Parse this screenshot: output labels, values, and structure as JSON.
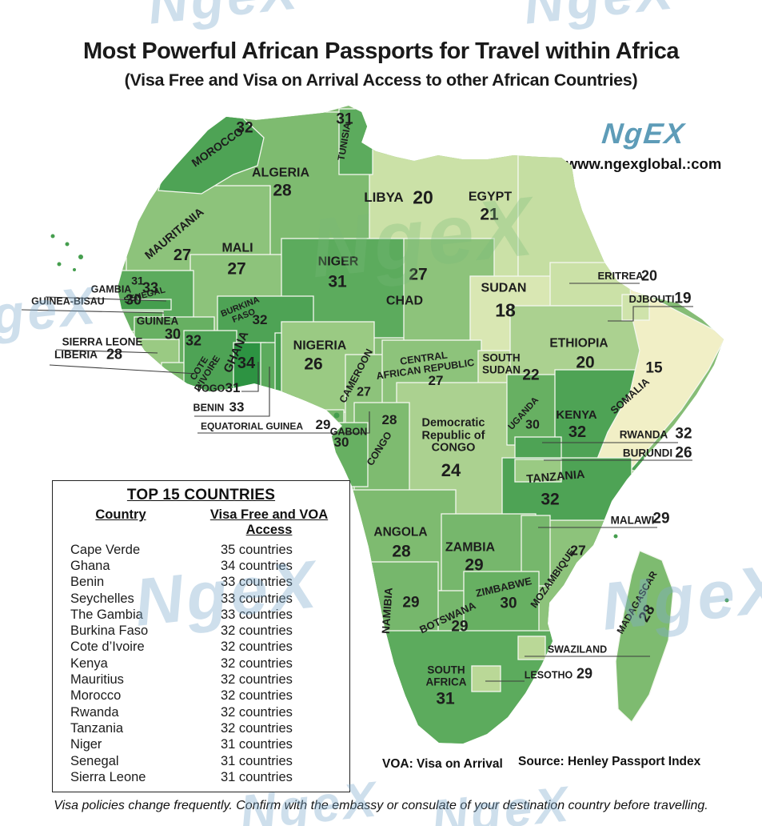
{
  "header": {
    "title": "Most Powerful African Passports for Travel within Africa",
    "subtitle": "(Visa Free and Visa on Arrival Access to other African Countries)"
  },
  "branding": {
    "logo_text": "NgEX",
    "website": "www.ngexglobal.:com",
    "logo_color": "#5e9cb8",
    "watermark_text": "NgeX"
  },
  "map": {
    "countries": [
      {
        "id": "morocco",
        "label": "MOROCCO",
        "value": 32
      },
      {
        "id": "tunisia",
        "label": "TUNISIA",
        "value": 31
      },
      {
        "id": "algeria",
        "label": "ALGERIA",
        "value": 28
      },
      {
        "id": "libya",
        "label": "LIBYA",
        "value": 20
      },
      {
        "id": "egypt",
        "label": "EGYPT",
        "value": 21
      },
      {
        "id": "mauritania",
        "label": "MAURITANIA",
        "value": 27
      },
      {
        "id": "mali",
        "label": "MALI",
        "value": 27
      },
      {
        "id": "senegal",
        "label": "SENEGAL",
        "value": 31
      },
      {
        "id": "gambia",
        "label": "GAMBIA",
        "value": 33
      },
      {
        "id": "guinea_bissau",
        "label": "GUINEA-BISAU",
        "value": 30
      },
      {
        "id": "guinea",
        "label": "GUINEA",
        "value": 30
      },
      {
        "id": "sierra_leone",
        "label": "SIERRA LEONE",
        "value": null
      },
      {
        "id": "liberia",
        "label": "LIBERIA",
        "value": 28
      },
      {
        "id": "cote_divoire",
        "label": "COTE\nD'IVOIRE",
        "value": 32
      },
      {
        "id": "ghana",
        "label": "GHANA",
        "value": 34
      },
      {
        "id": "togo",
        "label": "TOGO",
        "value": 31
      },
      {
        "id": "benin",
        "label": "BENIN",
        "value": 33
      },
      {
        "id": "burkina_faso",
        "label": "BURKINA\nFASO",
        "value": 32
      },
      {
        "id": "niger",
        "label": "NIGER",
        "value": 31
      },
      {
        "id": "nigeria",
        "label": "NIGERIA",
        "value": 26
      },
      {
        "id": "chad",
        "label": "CHAD",
        "value": 27
      },
      {
        "id": "cameroon",
        "label": "CAMEROON",
        "value": 27
      },
      {
        "id": "central_african_republic",
        "label": "CENTRAL\nAFRICAN REPUBLIC",
        "value": 27
      },
      {
        "id": "equatorial_guinea",
        "label": "EQUATORIAL GUINEA",
        "value": 29
      },
      {
        "id": "gabon",
        "label": "GABON",
        "value": 30
      },
      {
        "id": "congo",
        "label": "CONGO",
        "value": 28
      },
      {
        "id": "drc",
        "label": "Democratic\nRepublic of\nCONGO",
        "value": 24
      },
      {
        "id": "sudan",
        "label": "SUDAN",
        "value": 18
      },
      {
        "id": "south_sudan",
        "label": "SOUTH\nSUDAN",
        "value": 22
      },
      {
        "id": "eritrea",
        "label": "ERITREA",
        "value": 20
      },
      {
        "id": "djibouti",
        "label": "DJBOUTI",
        "value": 19
      },
      {
        "id": "ethiopia",
        "label": "ETHIOPIA",
        "value": 20
      },
      {
        "id": "somalia",
        "label": "SOMALIA",
        "value": 15
      },
      {
        "id": "uganda",
        "label": "UGANDA",
        "value": 30
      },
      {
        "id": "kenya",
        "label": "KENYA",
        "value": 32
      },
      {
        "id": "rwanda",
        "label": "RWANDA",
        "value": 32
      },
      {
        "id": "burundi",
        "label": "BURUNDI",
        "value": 26
      },
      {
        "id": "tanzania",
        "label": "TANZANIA",
        "value": 32
      },
      {
        "id": "malawi",
        "label": "MALAWI",
        "value": 29
      },
      {
        "id": "zambia",
        "label": "ZAMBIA",
        "value": 29
      },
      {
        "id": "mozambique",
        "label": "MOZAMBIQUE",
        "value": 27
      },
      {
        "id": "zimbabwe",
        "label": "ZIMBABWE",
        "value": 30
      },
      {
        "id": "botswana",
        "label": "BOTSWANA",
        "value": 29
      },
      {
        "id": "namibia",
        "label": "NAMIBIA",
        "value": 29
      },
      {
        "id": "angola",
        "label": "ANGOLA",
        "value": 28
      },
      {
        "id": "south_africa",
        "label": "SOUTH\nAFRICA",
        "value": 31
      },
      {
        "id": "swaziland",
        "label": "SWAZILAND",
        "value": null
      },
      {
        "id": "lesotho",
        "label": "LESOTHO",
        "value": 29
      },
      {
        "id": "madagascar",
        "label": "MADAGASCAR",
        "value": 28
      }
    ]
  },
  "table": {
    "title": "TOP 15 COUNTRIES",
    "col_country": "Country",
    "col_access": "Visa Free and VOA Access",
    "rows": [
      {
        "country": "Cape Verde",
        "access": "35 countries"
      },
      {
        "country": "Ghana",
        "access": "34 countries"
      },
      {
        "country": "Benin",
        "access": "33 countries"
      },
      {
        "country": "Seychelles",
        "access": "33 countries"
      },
      {
        "country": "The Gambia",
        "access": "33 countries"
      },
      {
        "country": "Burkina Faso",
        "access": "32 countries"
      },
      {
        "country": "Cote d’Ivoire",
        "access": "32 countries"
      },
      {
        "country": "Kenya",
        "access": "32 countries"
      },
      {
        "country": "Mauritius",
        "access": "32 countries"
      },
      {
        "country": "Morocco",
        "access": "32 countries"
      },
      {
        "country": "Rwanda",
        "access": "32 countries"
      },
      {
        "country": "Tanzania",
        "access": "32 countries"
      },
      {
        "country": "Niger",
        "access": "31 countries"
      },
      {
        "country": "Senegal",
        "access": "31 countries"
      },
      {
        "country": "Sierra Leone",
        "access": "31 countries"
      }
    ]
  },
  "footnotes": {
    "voa": "VOA: Visa on Arrival",
    "source": "Source: Henley Passport Index"
  },
  "disclaimer": "Visa policies change frequently. Confirm with the embassy or consulate of your destination country before travelling.",
  "color_scale": {
    "15": "#f1efc6",
    "18": "#d9e7b3",
    "19": "#cfe3ab",
    "20": "#cbe1a7",
    "21": "#c5dea2",
    "22": "#bad897",
    "24": "#abd190",
    "26": "#9aca83",
    "27": "#8dc37b",
    "28": "#7ebb70",
    "29": "#76b76c",
    "30": "#67b062",
    "31": "#5cab5d",
    "32": "#4ea355",
    "33": "#459e4e",
    "34": "#2d9342"
  },
  "chart_data": {
    "type": "choropleth",
    "title": "Most Powerful African Passports for Travel within Africa",
    "metric": "Visa Free and Visa on Arrival access to other African countries",
    "values": {
      "Morocco": 32,
      "Tunisia": 31,
      "Algeria": 28,
      "Libya": 20,
      "Egypt": 21,
      "Mauritania": 27,
      "Mali": 27,
      "Senegal": 31,
      "Gambia": 33,
      "Guinea-Bissau": 30,
      "Guinea": 30,
      "Liberia": 28,
      "Cote d'Ivoire": 32,
      "Ghana": 34,
      "Togo": 31,
      "Benin": 33,
      "Burkina Faso": 32,
      "Niger": 31,
      "Nigeria": 26,
      "Chad": 27,
      "Cameroon": 27,
      "Central African Republic": 27,
      "Equatorial Guinea": 29,
      "Gabon": 30,
      "Congo": 28,
      "Democratic Republic of Congo": 24,
      "Sudan": 18,
      "South Sudan": 22,
      "Eritrea": 20,
      "Djibouti": 19,
      "Ethiopia": 20,
      "Somalia": 15,
      "Uganda": 30,
      "Kenya": 32,
      "Rwanda": 32,
      "Burundi": 26,
      "Tanzania": 32,
      "Malawi": 29,
      "Zambia": 29,
      "Mozambique": 27,
      "Zimbabwe": 30,
      "Botswana": 29,
      "Namibia": 29,
      "Angola": 28,
      "South Africa": 31,
      "Lesotho": 29,
      "Madagascar": 28,
      "Cape Verde": 35,
      "Seychelles": 33,
      "Mauritius": 32
    }
  }
}
